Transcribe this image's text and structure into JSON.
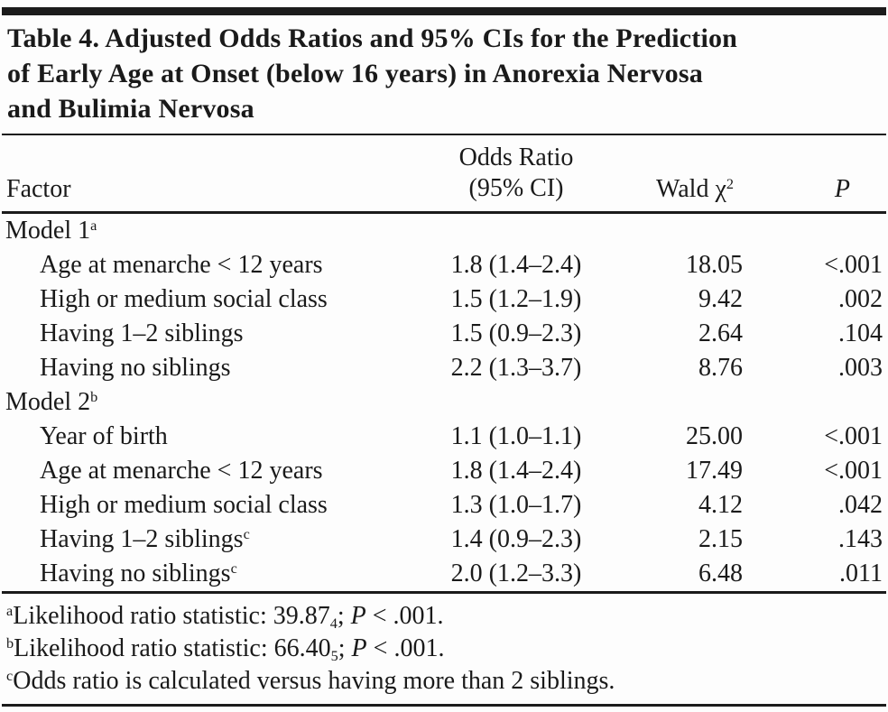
{
  "title_lines": [
    "Table 4. Adjusted Odds Ratios and 95% CIs for the Prediction",
    "of Early Age at Onset (below 16 years) in Anorexia Nervosa",
    "and Bulimia Nervosa"
  ],
  "colors": {
    "rule": "#1b1b1b",
    "text": "#1a1a1a",
    "background": "#fdfdfd"
  },
  "table": {
    "col_headers": {
      "factor": "Factor",
      "odds_ratio_line1": "Odds Ratio",
      "odds_ratio_line2": "(95% CI)",
      "wald_base": "Wald χ",
      "wald_sup": "2",
      "p": "P"
    },
    "sections": [
      {
        "label": "Model 1",
        "label_sup": "a",
        "rows": [
          {
            "factor": "Age at menarche < 12 years",
            "or": "1.8 (1.4–2.4)",
            "wald": "18.05",
            "p": "<.001"
          },
          {
            "factor": "High or medium social class",
            "or": "1.5 (1.2–1.9)",
            "wald": "9.42",
            "p": ".002"
          },
          {
            "factor": "Having 1–2 siblings",
            "or": "1.5 (0.9–2.3)",
            "wald": "2.64",
            "p": ".104"
          },
          {
            "factor": "Having no siblings",
            "or": "2.2 (1.3–3.7)",
            "wald": "8.76",
            "p": ".003"
          }
        ]
      },
      {
        "label": "Model 2",
        "label_sup": "b",
        "rows": [
          {
            "factor": "Year of birth",
            "or": "1.1 (1.0–1.1)",
            "wald": "25.00",
            "p": "<.001"
          },
          {
            "factor": "Age at menarche < 12 years",
            "or": "1.8 (1.4–2.4)",
            "wald": "17.49",
            "p": "<.001"
          },
          {
            "factor": "High or medium social class",
            "or": "1.3 (1.0–1.7)",
            "wald": "4.12",
            "p": ".042"
          },
          {
            "factor": "Having 1–2 siblings",
            "factor_sup": "c",
            "or": "1.4 (0.9–2.3)",
            "wald": "2.15",
            "p": ".143"
          },
          {
            "factor": "Having no siblings",
            "factor_sup": "c",
            "or": "2.0 (1.2–3.3)",
            "wald": "6.48",
            "p": ".011"
          }
        ]
      }
    ]
  },
  "footnotes": [
    {
      "marker": "a",
      "text": "Likelihood ratio statistic: 39.87",
      "sub": "4",
      "sep": "; ",
      "p": "P",
      "tail": " < .001."
    },
    {
      "marker": "b",
      "text": "Likelihood ratio statistic: 66.40",
      "sub": "5",
      "sep": "; ",
      "p": "P",
      "tail": " < .001."
    },
    {
      "marker": "c",
      "text": "Odds ratio is calculated versus having more than 2 siblings."
    }
  ]
}
